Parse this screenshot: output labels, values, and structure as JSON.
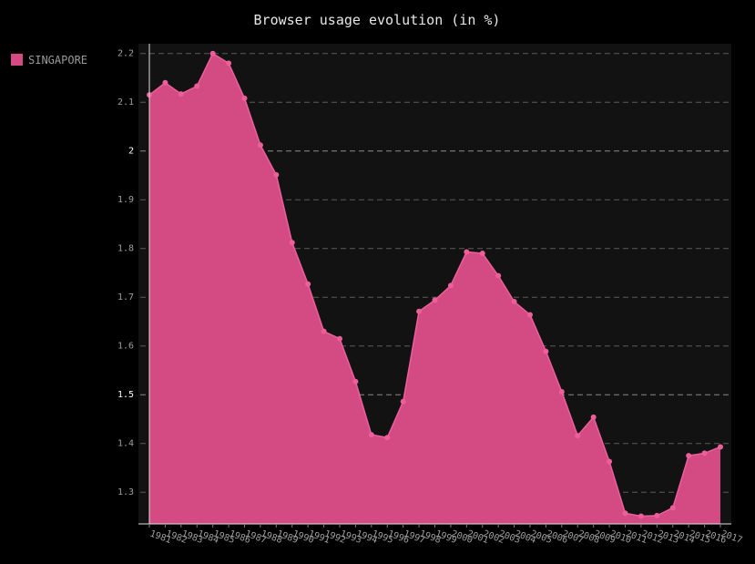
{
  "chart_data": {
    "type": "area",
    "title": "Browser usage evolution (in %)",
    "xlabel": "",
    "ylabel": "",
    "ylim": [
      1.235,
      2.22
    ],
    "yticks": [
      1.3,
      1.4,
      1.5,
      1.6,
      1.7,
      1.8,
      1.9,
      2,
      2.1,
      2.2
    ],
    "ytick_labels": [
      "1.3",
      "1.4",
      "1.5",
      "1.6",
      "1.7",
      "1.8",
      "1.9",
      "2",
      "2.1",
      "2.2"
    ],
    "major_yticks": [
      1.5,
      2
    ],
    "grid": true,
    "legend_position": "top-left",
    "background": "#121212",
    "x": [
      "1981",
      "1982",
      "1983",
      "1984",
      "1985",
      "1986",
      "1987",
      "1988",
      "1989",
      "1990",
      "1991",
      "1992",
      "1993",
      "1994",
      "1995",
      "1996",
      "1997",
      "1998",
      "1999",
      "2000",
      "2001",
      "2002",
      "2003",
      "2004",
      "2005",
      "2006",
      "2007",
      "2008",
      "2009",
      "2010",
      "2011",
      "2012",
      "2013",
      "2014",
      "2015",
      "2016",
      "2017"
    ],
    "series": [
      {
        "name": "SINGAPORE",
        "color": "#ec5f9b",
        "fill": "#d34b82",
        "values": [
          2.115,
          2.14,
          2.117,
          2.133,
          2.2,
          2.18,
          2.108,
          2.012,
          1.951,
          1.812,
          1.727,
          1.63,
          1.615,
          1.527,
          1.418,
          1.412,
          1.486,
          1.671,
          1.694,
          1.724,
          1.793,
          1.79,
          1.744,
          1.691,
          1.664,
          1.589,
          1.506,
          1.416,
          1.454,
          1.363,
          1.257,
          1.251,
          1.252,
          1.268,
          1.375,
          1.38,
          1.393
        ]
      }
    ]
  }
}
